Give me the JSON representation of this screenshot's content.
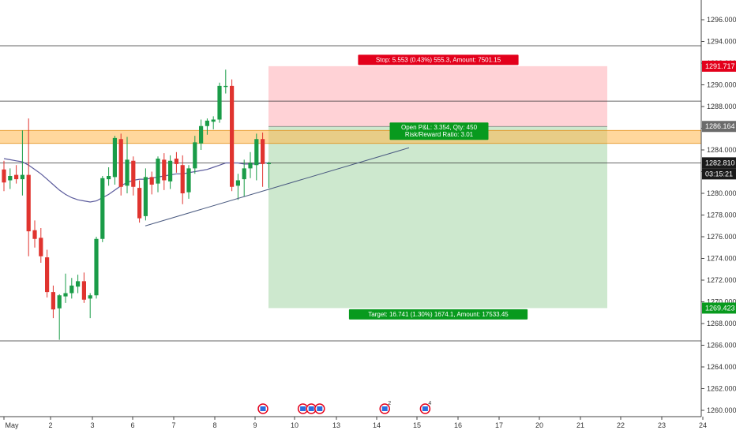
{
  "chart_data": {
    "type": "candlestick",
    "x_axis": {
      "ticks": [
        {
          "label": "May",
          "index": 0
        },
        {
          "label": "2",
          "index": 1
        },
        {
          "label": "3",
          "index": 2
        },
        {
          "label": "6",
          "index": 3
        },
        {
          "label": "7",
          "index": 4
        },
        {
          "label": "8",
          "index": 5
        },
        {
          "label": "9",
          "index": 6
        },
        {
          "label": "10",
          "index": 7
        },
        {
          "label": "13",
          "index": 8
        },
        {
          "label": "14",
          "index": 9
        },
        {
          "label": "15",
          "index": 10
        },
        {
          "label": "16",
          "index": 11
        },
        {
          "label": "17",
          "index": 12
        },
        {
          "label": "20",
          "index": 13
        },
        {
          "label": "21",
          "index": 14
        },
        {
          "label": "22",
          "index": 15
        },
        {
          "label": "23",
          "index": 16
        },
        {
          "label": "24",
          "index": 17
        }
      ]
    },
    "y_axis": {
      "range": [
        1259,
        1297.5
      ],
      "ticks": [
        "1260.000",
        "1262.000",
        "1264.000",
        "1266.000",
        "1268.000",
        "1270.000",
        "1272.000",
        "1274.000",
        "1276.000",
        "1278.000",
        "1280.000",
        "1282.000",
        "1284.000",
        "1286.000",
        "1288.000",
        "1290.000",
        "1292.000",
        "1294.000",
        "1296.000"
      ]
    },
    "candles": [
      [
        1282.2,
        1283.0,
        1280.2,
        1281.0
      ],
      [
        1281.2,
        1282.3,
        1280.4,
        1281.6
      ],
      [
        1281.7,
        1282.6,
        1280.9,
        1281.3
      ],
      [
        1281.3,
        1285.8,
        1279.8,
        1281.7
      ],
      [
        1281.7,
        1286.9,
        1274.2,
        1276.5
      ],
      [
        1276.6,
        1277.5,
        1275.0,
        1275.8
      ],
      [
        1275.9,
        1276.8,
        1273.6,
        1274.2
      ],
      [
        1274.1,
        1274.8,
        1270.4,
        1270.9
      ],
      [
        1270.9,
        1271.5,
        1268.5,
        1269.3
      ],
      [
        1269.4,
        1270.7,
        1266.5,
        1270.6
      ],
      [
        1270.5,
        1272.6,
        1269.9,
        1270.8
      ],
      [
        1270.8,
        1272.2,
        1270.3,
        1271.5
      ],
      [
        1271.4,
        1272.5,
        1270.8,
        1271.9
      ],
      [
        1271.9,
        1272.7,
        1269.9,
        1270.2
      ],
      [
        1270.3,
        1270.8,
        1268.5,
        1270.6
      ],
      [
        1270.6,
        1276.0,
        1270.3,
        1275.8
      ],
      [
        1275.8,
        1281.6,
        1275.5,
        1281.4
      ],
      [
        1281.3,
        1282.4,
        1280.7,
        1281.6
      ],
      [
        1281.5,
        1285.3,
        1280.8,
        1285.1
      ],
      [
        1285.0,
        1285.5,
        1279.8,
        1280.6
      ],
      [
        1280.7,
        1285.2,
        1280.0,
        1283.1
      ],
      [
        1283.0,
        1283.4,
        1279.8,
        1280.6
      ],
      [
        1280.5,
        1281.2,
        1277.3,
        1277.7
      ],
      [
        1277.9,
        1282.3,
        1277.5,
        1281.5
      ],
      [
        1281.5,
        1282.0,
        1279.9,
        1280.8
      ],
      [
        1280.9,
        1283.4,
        1280.1,
        1283.2
      ],
      [
        1283.1,
        1283.7,
        1280.3,
        1281.2
      ],
      [
        1281.1,
        1283.5,
        1280.4,
        1283.0
      ],
      [
        1283.2,
        1283.8,
        1281.9,
        1282.7
      ],
      [
        1282.6,
        1283.5,
        1279.0,
        1280.0
      ],
      [
        1280.1,
        1282.6,
        1279.5,
        1282.3
      ],
      [
        1282.3,
        1285.3,
        1281.8,
        1284.7
      ],
      [
        1284.6,
        1286.8,
        1284.0,
        1286.2
      ],
      [
        1286.2,
        1286.9,
        1285.4,
        1286.7
      ],
      [
        1286.6,
        1287.1,
        1285.9,
        1286.8
      ],
      [
        1286.8,
        1290.2,
        1286.5,
        1289.9
      ],
      [
        1289.8,
        1291.4,
        1289.2,
        1289.9
      ],
      [
        1289.9,
        1290.5,
        1280.2,
        1280.6
      ],
      [
        1280.7,
        1281.8,
        1279.4,
        1281.2
      ],
      [
        1281.3,
        1283.1,
        1279.7,
        1282.3
      ],
      [
        1282.3,
        1283.8,
        1281.4,
        1282.8
      ],
      [
        1282.6,
        1285.5,
        1281.2,
        1285.0
      ],
      [
        1285.0,
        1285.6,
        1280.6,
        1282.7
      ],
      [
        1282.7,
        1282.9,
        1280.5,
        1282.8
      ]
    ],
    "moving_average": [
      1283.2,
      1283.1,
      1283.0,
      1282.9,
      1282.6,
      1282.2,
      1281.8,
      1281.3,
      1280.8,
      1280.3,
      1279.9,
      1279.6,
      1279.4,
      1279.3,
      1279.2,
      1279.3,
      1279.6,
      1279.9,
      1280.3,
      1280.7,
      1281.0,
      1281.2,
      1281.3,
      1281.3,
      1281.4,
      1281.5,
      1281.6,
      1281.7,
      1281.8,
      1281.8,
      1281.9,
      1282.0,
      1282.1,
      1282.2,
      1282.4,
      1282.6,
      1282.8,
      1282.8,
      1282.8,
      1282.7,
      1282.7,
      1282.7,
      1282.8,
      1282.8
    ],
    "horizontal_lines": [
      {
        "name": "resistance-upper",
        "value": 1293.6
      },
      {
        "name": "resistance-mid",
        "value": 1288.5
      },
      {
        "name": "current-price-line",
        "value": 1282.81
      },
      {
        "name": "support-low",
        "value": 1266.4
      }
    ],
    "zone": {
      "low": 1284.6,
      "high": 1285.8,
      "color": "#ffb74d"
    },
    "trendline": {
      "from": [
        22.6,
        1277.0
      ],
      "to": [
        58,
        1284.2
      ]
    },
    "position": {
      "start_x": 41.8,
      "end_x": 96.5,
      "entry": 1286.164,
      "stop": 1291.717,
      "target": 1269.423,
      "stop_label": "Stop: 5.553 (0.43%) 555.3, Amount: 7501.15",
      "pnl_label_line1": "Open P&L: 3.354, Qty: 450",
      "pnl_label_line2": "Risk/Reward Ratio: 3.01",
      "target_label": "Target: 16.741 (1.30%) 1674.1, Amount: 17533.45"
    },
    "price_badges": [
      {
        "name": "stop-price-badge",
        "label": "1291.717",
        "value": 1291.717,
        "color": "#e3001b"
      },
      {
        "name": "entry-price-badge",
        "label": "1286.164",
        "value": 1286.164,
        "color": "#6b6b6b"
      },
      {
        "name": "last-price-badge",
        "label": "1282.810",
        "value": 1282.81,
        "color": "#1a1a1a"
      },
      {
        "name": "countdown-badge",
        "label": "03:15:21",
        "value": 1281.5,
        "color": "#1a1a1a"
      },
      {
        "name": "target-price-badge",
        "label": "1269.423",
        "value": 1269.423,
        "color": "#089a1e"
      }
    ],
    "event_markers": [
      {
        "x_index": 6.2,
        "label": ""
      },
      {
        "x_index": 7.2,
        "label": ""
      },
      {
        "x_index": 7.4,
        "label": ""
      },
      {
        "x_index": 7.6,
        "label": ""
      },
      {
        "x_index": 9.2,
        "label": "2"
      },
      {
        "x_index": 10.2,
        "label": "4"
      }
    ],
    "colors": {
      "up": "#1a9c48",
      "down": "#e0342f",
      "ma": "#5b5b9c",
      "stop_zone": "#ffcdd2",
      "target_zone": "#c8e6c9",
      "trendline": "#4a5a80",
      "label_red": "#e3001b",
      "label_green": "#089a1e"
    }
  }
}
